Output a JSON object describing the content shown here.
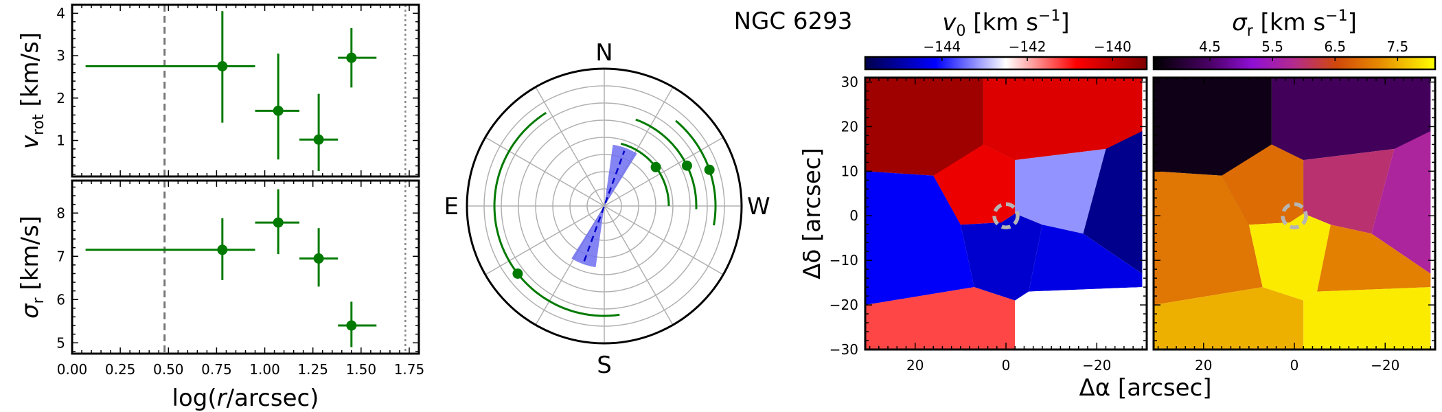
{
  "title": "NGC 6293",
  "chart_data": [
    {
      "type": "scatter",
      "panel": "rotation-profile",
      "xlabel": "",
      "ylabel_main": "v",
      "ylabel_sub": "rot",
      "ylabel_unit": " [km/s]",
      "xlim": [
        0.0,
        1.8
      ],
      "ylim": [
        0.15,
        4.2
      ],
      "yticks": [
        "1",
        "2",
        "3",
        "4"
      ],
      "ytick_values": [
        1,
        2,
        3,
        4
      ],
      "vlines": [
        0.48,
        1.73
      ],
      "color": "#007a00",
      "points": [
        {
          "x": 0.78,
          "y": 2.75,
          "xmin": 0.07,
          "xmax": 0.95,
          "ymin": 1.42,
          "ymax": 4.05
        },
        {
          "x": 1.07,
          "y": 1.7,
          "xmin": 0.95,
          "xmax": 1.18,
          "ymin": 0.55,
          "ymax": 3.05
        },
        {
          "x": 1.28,
          "y": 1.02,
          "xmin": 1.18,
          "xmax": 1.38,
          "ymin": 0.28,
          "ymax": 2.1
        },
        {
          "x": 1.45,
          "y": 2.95,
          "xmin": 1.38,
          "xmax": 1.58,
          "ymin": 2.25,
          "ymax": 3.65
        }
      ]
    },
    {
      "type": "scatter",
      "panel": "dispersion-profile",
      "xlabel_pre": "log(",
      "xlabel_var": "r",
      "xlabel_post": "/arcsec)",
      "ylabel_main": "σ",
      "ylabel_sub": "r",
      "ylabel_unit": " [km/s]",
      "xlim": [
        0.0,
        1.8
      ],
      "ylim": [
        4.75,
        8.75
      ],
      "xticks": [
        "0.00",
        "0.25",
        "0.50",
        "0.75",
        "1.00",
        "1.25",
        "1.50",
        "1.75"
      ],
      "xtick_values": [
        0.0,
        0.25,
        0.5,
        0.75,
        1.0,
        1.25,
        1.5,
        1.75
      ],
      "yticks": [
        "5",
        "6",
        "7",
        "8"
      ],
      "ytick_values": [
        5,
        6,
        7,
        8
      ],
      "vlines": [
        0.48,
        1.73
      ],
      "color": "#007a00",
      "points": [
        {
          "x": 0.78,
          "y": 7.15,
          "xmin": 0.07,
          "xmax": 0.95,
          "ymin": 6.45,
          "ymax": 7.88
        },
        {
          "x": 1.07,
          "y": 7.78,
          "xmin": 0.95,
          "xmax": 1.18,
          "ymin": 7.05,
          "ymax": 8.55
        },
        {
          "x": 1.28,
          "y": 6.95,
          "xmin": 1.18,
          "xmax": 1.38,
          "ymin": 6.3,
          "ymax": 7.65
        },
        {
          "x": 1.45,
          "y": 5.4,
          "xmin": 1.38,
          "xmax": 1.58,
          "ymin": 4.9,
          "ymax": 5.95
        }
      ]
    },
    {
      "type": "polar",
      "panel": "position-angle",
      "directions": {
        "n": "N",
        "e": "E",
        "s": "S",
        "w": "W"
      },
      "rings": 8,
      "spokes_deg": 30,
      "rmax": 1.0,
      "arc_color": "#007a00",
      "wedge_color": "#6f6ff0",
      "points": [
        {
          "r": 0.47,
          "pa": 307,
          "arc_from": 270,
          "arc_to": 345
        },
        {
          "r": 0.67,
          "pa": 296,
          "arc_from": 268,
          "arc_to": 340
        },
        {
          "r": 0.81,
          "pa": 289,
          "arc_from": 260,
          "arc_to": 320
        },
        {
          "r": 0.8,
          "pa": 128,
          "arc_from": 32,
          "arc_to": 188
        }
      ],
      "wedge": {
        "pa": 160,
        "half_width": 12,
        "r_in": 0.0,
        "r_out": 0.45
      }
    },
    {
      "type": "heatmap",
      "panel": "velocity-map",
      "title_sym": "v",
      "title_sub": "0",
      "title_unit": " [km s",
      "title_exp": "−1",
      "title_close": "]",
      "cbar_ticks": [
        "−144",
        "−142",
        "−140"
      ],
      "cbar_tick_values": [
        -144,
        -142,
        -140
      ],
      "cbar_range": [
        -145.8,
        -139.2
      ],
      "cmap": "seismic",
      "xlabel": "Δα [arcsec]",
      "ylabel": "Δδ [arcsec]",
      "xlim": [
        31,
        -31
      ],
      "ylim": [
        -30,
        31
      ],
      "xticks": [
        "20",
        "0",
        "−20"
      ],
      "xtick_values": [
        20,
        0,
        -20
      ],
      "yticks": [
        "30",
        "20",
        "10",
        "0",
        "−10",
        "−20",
        "−30"
      ],
      "ytick_values": [
        30,
        20,
        10,
        0,
        -10,
        -20,
        -30
      ],
      "cells": [
        {
          "value": -139.6,
          "poly": [
            [
              31,
              31
            ],
            [
              5,
              31
            ],
            [
              5,
              16
            ],
            [
              -2,
              12.5
            ],
            [
              -2,
              0.5
            ],
            [
              10,
              -2
            ],
            [
              16,
              9
            ],
            [
              31,
              10
            ]
          ]
        },
        {
          "value": -140.4,
          "poly": [
            [
              5,
              31
            ],
            [
              -30,
              31
            ],
            [
              -30,
              16
            ],
            [
              -22,
              15
            ],
            [
              -2,
              12.5
            ],
            [
              5,
              16
            ]
          ]
        },
        {
          "value": -140.6,
          "poly": [
            [
              16,
              9
            ],
            [
              10,
              -2
            ],
            [
              1,
              -1.5
            ],
            [
              -2,
              0.5
            ],
            [
              -2,
              12.5
            ],
            [
              5,
              16
            ]
          ]
        },
        {
          "value": -143.2,
          "poly": [
            [
              -2,
              12.5
            ],
            [
              -22,
              15
            ],
            [
              -17,
              -4
            ],
            [
              -8,
              -2
            ],
            [
              -2,
              0.5
            ]
          ]
        },
        {
          "value": -145.2,
          "poly": [
            [
              -22,
              15
            ],
            [
              -30,
              19
            ],
            [
              -30,
              -13
            ],
            [
              -17,
              -4
            ]
          ]
        },
        {
          "value": -144.2,
          "poly": [
            [
              31,
              10
            ],
            [
              16,
              9
            ],
            [
              10,
              -2
            ],
            [
              7,
              -16
            ],
            [
              31,
              -20
            ]
          ]
        },
        {
          "value": -144.6,
          "poly": [
            [
              10,
              -2
            ],
            [
              1,
              -1.5
            ],
            [
              -2,
              0.5
            ],
            [
              -8,
              -2
            ],
            [
              -5,
              -17
            ],
            [
              -2,
              -19
            ],
            [
              7,
              -16
            ]
          ]
        },
        {
          "value": -144.4,
          "poly": [
            [
              -8,
              -2
            ],
            [
              -17,
              -4
            ],
            [
              -30,
              -13
            ],
            [
              -30,
              -16
            ],
            [
              -5,
              -17
            ]
          ]
        },
        {
          "value": -141.3,
          "poly": [
            [
              31,
              -20
            ],
            [
              7,
              -16
            ],
            [
              -2,
              -19
            ],
            [
              -2,
              -30
            ],
            [
              31,
              -30
            ]
          ]
        },
        {
          "value": -142.5,
          "poly": [
            [
              -2,
              -19
            ],
            [
              -5,
              -17
            ],
            [
              -30,
              -16
            ],
            [
              -30,
              -30
            ],
            [
              -2,
              -30
            ]
          ]
        }
      ]
    },
    {
      "type": "heatmap",
      "panel": "dispersion-map",
      "title_sym": "σ",
      "title_sub": "r",
      "title_unit": " [km s",
      "title_exp": "−1",
      "title_close": "]",
      "cbar_ticks": [
        "4.5",
        "5.5",
        "6.5",
        "7.5"
      ],
      "cbar_tick_values": [
        4.5,
        5.5,
        6.5,
        7.5
      ],
      "cbar_range": [
        3.6,
        8.1
      ],
      "cmap": "gnuplot",
      "xlabel": "",
      "xlim": [
        31,
        -31
      ],
      "ylim": [
        -30,
        31
      ],
      "xticks": [
        "20",
        "0",
        "−20"
      ],
      "xtick_values": [
        20,
        0,
        -20
      ],
      "cells": [
        {
          "value": 3.8,
          "poly": [
            [
              31,
              31
            ],
            [
              5,
              31
            ],
            [
              5,
              16
            ],
            [
              -2,
              12.5
            ],
            [
              -2,
              0.5
            ],
            [
              10,
              -2
            ],
            [
              16,
              9
            ],
            [
              31,
              10
            ]
          ]
        },
        {
          "value": 4.4,
          "poly": [
            [
              5,
              31
            ],
            [
              -30,
              31
            ],
            [
              -30,
              16
            ],
            [
              -22,
              15
            ],
            [
              -2,
              12.5
            ],
            [
              5,
              16
            ]
          ]
        },
        {
          "value": 6.9,
          "poly": [
            [
              16,
              9
            ],
            [
              10,
              -2
            ],
            [
              1,
              -1.5
            ],
            [
              -2,
              0.5
            ],
            [
              -2,
              12.5
            ],
            [
              5,
              16
            ]
          ]
        },
        {
          "value": 6.0,
          "poly": [
            [
              -2,
              12.5
            ],
            [
              -22,
              15
            ],
            [
              -17,
              -4
            ],
            [
              -8,
              -2
            ],
            [
              -2,
              0.5
            ]
          ]
        },
        {
          "value": 5.7,
          "poly": [
            [
              -22,
              15
            ],
            [
              -30,
              19
            ],
            [
              -30,
              -13
            ],
            [
              -17,
              -4
            ]
          ]
        },
        {
          "value": 7.0,
          "poly": [
            [
              31,
              10
            ],
            [
              16,
              9
            ],
            [
              10,
              -2
            ],
            [
              7,
              -16
            ],
            [
              31,
              -20
            ]
          ]
        },
        {
          "value": 7.95,
          "poly": [
            [
              10,
              -2
            ],
            [
              1,
              -1.5
            ],
            [
              -2,
              0.5
            ],
            [
              -8,
              -2
            ],
            [
              -5,
              -17
            ],
            [
              -2,
              -19
            ],
            [
              7,
              -16
            ]
          ]
        },
        {
          "value": 7.1,
          "poly": [
            [
              -8,
              -2
            ],
            [
              -17,
              -4
            ],
            [
              -30,
              -13
            ],
            [
              -30,
              -16
            ],
            [
              -5,
              -17
            ]
          ]
        },
        {
          "value": 7.5,
          "poly": [
            [
              31,
              -20
            ],
            [
              7,
              -16
            ],
            [
              -2,
              -19
            ],
            [
              -2,
              -30
            ],
            [
              31,
              -30
            ]
          ]
        },
        {
          "value": 7.95,
          "poly": [
            [
              -2,
              -19
            ],
            [
              -5,
              -17
            ],
            [
              -30,
              -16
            ],
            [
              -30,
              -30
            ],
            [
              -2,
              -30
            ]
          ]
        }
      ]
    }
  ]
}
